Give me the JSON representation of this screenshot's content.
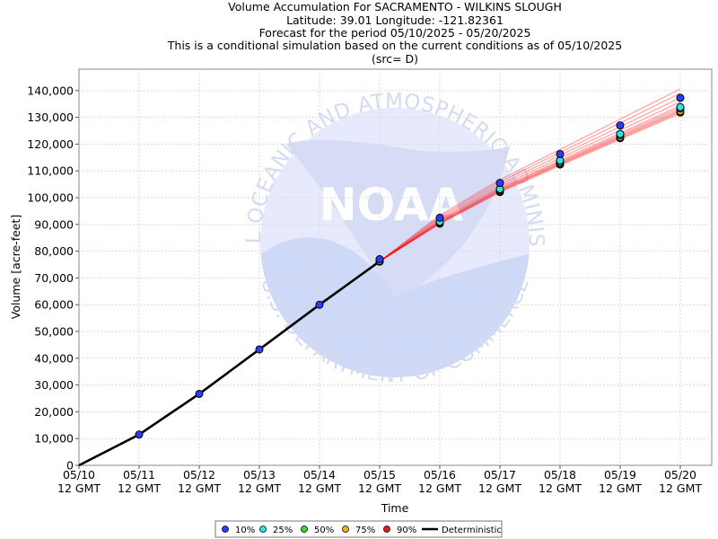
{
  "chart_data": {
    "type": "line",
    "title_lines": [
      "Volume Accumulation For SACRAMENTO - WILKINS SLOUGH",
      "Latitude: 39.01 Longitude: -121.82361",
      "Forecast for the period 05/10/2025 - 05/20/2025",
      "This is a conditional simulation based on the current conditions as of 05/10/2025",
      "(src= D)"
    ],
    "xlabel": "Time",
    "ylabel": "Volume [acre-feet]",
    "x_ticks": [
      {
        "date": "05/10",
        "time": "12 GMT"
      },
      {
        "date": "05/11",
        "time": "12 GMT"
      },
      {
        "date": "05/12",
        "time": "12 GMT"
      },
      {
        "date": "05/13",
        "time": "12 GMT"
      },
      {
        "date": "05/14",
        "time": "12 GMT"
      },
      {
        "date": "05/15",
        "time": "12 GMT"
      },
      {
        "date": "05/16",
        "time": "12 GMT"
      },
      {
        "date": "05/17",
        "time": "12 GMT"
      },
      {
        "date": "05/18",
        "time": "12 GMT"
      },
      {
        "date": "05/19",
        "time": "12 GMT"
      },
      {
        "date": "05/20",
        "time": "12 GMT"
      }
    ],
    "y_ticks": [
      "0",
      "10,000",
      "20,000",
      "30,000",
      "40,000",
      "50,000",
      "60,000",
      "70,000",
      "80,000",
      "90,000",
      "100,000",
      "110,000",
      "120,000",
      "130,000",
      "140,000"
    ],
    "ylim": [
      0,
      148000
    ],
    "grid": true,
    "legend_position": "bottom-center",
    "deterministic": {
      "name": "Deterministic",
      "color": "#000000",
      "x": [
        "05/10",
        "05/11",
        "05/12",
        "05/13",
        "05/14",
        "05/15"
      ],
      "values": [
        0,
        11500,
        26700,
        43300,
        60000,
        76200
      ]
    },
    "ensemble_traces": {
      "color": "#ff0000",
      "x": [
        "05/15",
        "05/16",
        "05/17",
        "05/18",
        "05/19",
        "05/20"
      ],
      "members": [
        [
          76200,
          90200,
          102000,
          112000,
          121800,
          131500
        ],
        [
          76200,
          90400,
          102300,
          112400,
          122200,
          132000
        ],
        [
          76200,
          90600,
          102600,
          112700,
          122600,
          132500
        ],
        [
          76200,
          90800,
          102900,
          113000,
          123000,
          133000
        ],
        [
          76200,
          91000,
          103200,
          113400,
          123500,
          133700
        ],
        [
          76200,
          91300,
          103600,
          113900,
          124100,
          134400
        ],
        [
          76200,
          91700,
          104200,
          114800,
          125200,
          135800
        ],
        [
          76200,
          92200,
          105000,
          115800,
          126500,
          137300
        ],
        [
          76200,
          92800,
          105900,
          116900,
          127900,
          139000
        ],
        [
          76200,
          93400,
          106700,
          118000,
          129300,
          140600
        ]
      ]
    },
    "exceedance_series": [
      {
        "name": "10%",
        "color": "#2b3cff",
        "x": [
          "05/11",
          "05/12",
          "05/13",
          "05/14",
          "05/15",
          "05/16",
          "05/17",
          "05/18",
          "05/19",
          "05/20"
        ],
        "values": [
          11500,
          26700,
          43300,
          60000,
          77000,
          92500,
          105500,
          116300,
          127000,
          137300
        ]
      },
      {
        "name": "25%",
        "color": "#29e5e5",
        "x": [
          "05/15",
          "05/16",
          "05/17",
          "05/18",
          "05/19",
          "05/20"
        ],
        "values": [
          76400,
          91000,
          103200,
          113900,
          123800,
          133800
        ]
      },
      {
        "name": "50%",
        "color": "#33dd33",
        "x": [
          "05/15",
          "05/16",
          "05/17",
          "05/18",
          "05/19",
          "05/20"
        ],
        "values": [
          76300,
          90800,
          102800,
          113300,
          123300,
          133300
        ]
      },
      {
        "name": "75%",
        "color": "#f0b020",
        "x": [
          "05/15",
          "05/16",
          "05/17",
          "05/18",
          "05/19",
          "05/20"
        ],
        "values": [
          76200,
          90500,
          102400,
          112800,
          122600,
          132300
        ]
      },
      {
        "name": "90%",
        "color": "#e02020",
        "x": [
          "05/15",
          "05/16",
          "05/17",
          "05/18",
          "05/19",
          "05/20"
        ],
        "values": [
          76100,
          90300,
          102100,
          112400,
          122200,
          131800
        ]
      }
    ],
    "legend": [
      {
        "label": "10%",
        "color": "#2b3cff",
        "kind": "dot"
      },
      {
        "label": "25%",
        "color": "#29e5e5",
        "kind": "dot"
      },
      {
        "label": "50%",
        "color": "#33dd33",
        "kind": "dot"
      },
      {
        "label": "75%",
        "color": "#f0b020",
        "kind": "dot"
      },
      {
        "label": "90%",
        "color": "#e02020",
        "kind": "dot"
      },
      {
        "label": "Deterministic",
        "color": "#000000",
        "kind": "line"
      }
    ],
    "watermark": {
      "logo_text": "NOAA",
      "ring_top": "NATIONAL OCEANIC AND ATMOSPHERIC ADMINISTRATION",
      "ring_bottom": "U.S. DEPARTMENT OF COMMERCE"
    }
  }
}
